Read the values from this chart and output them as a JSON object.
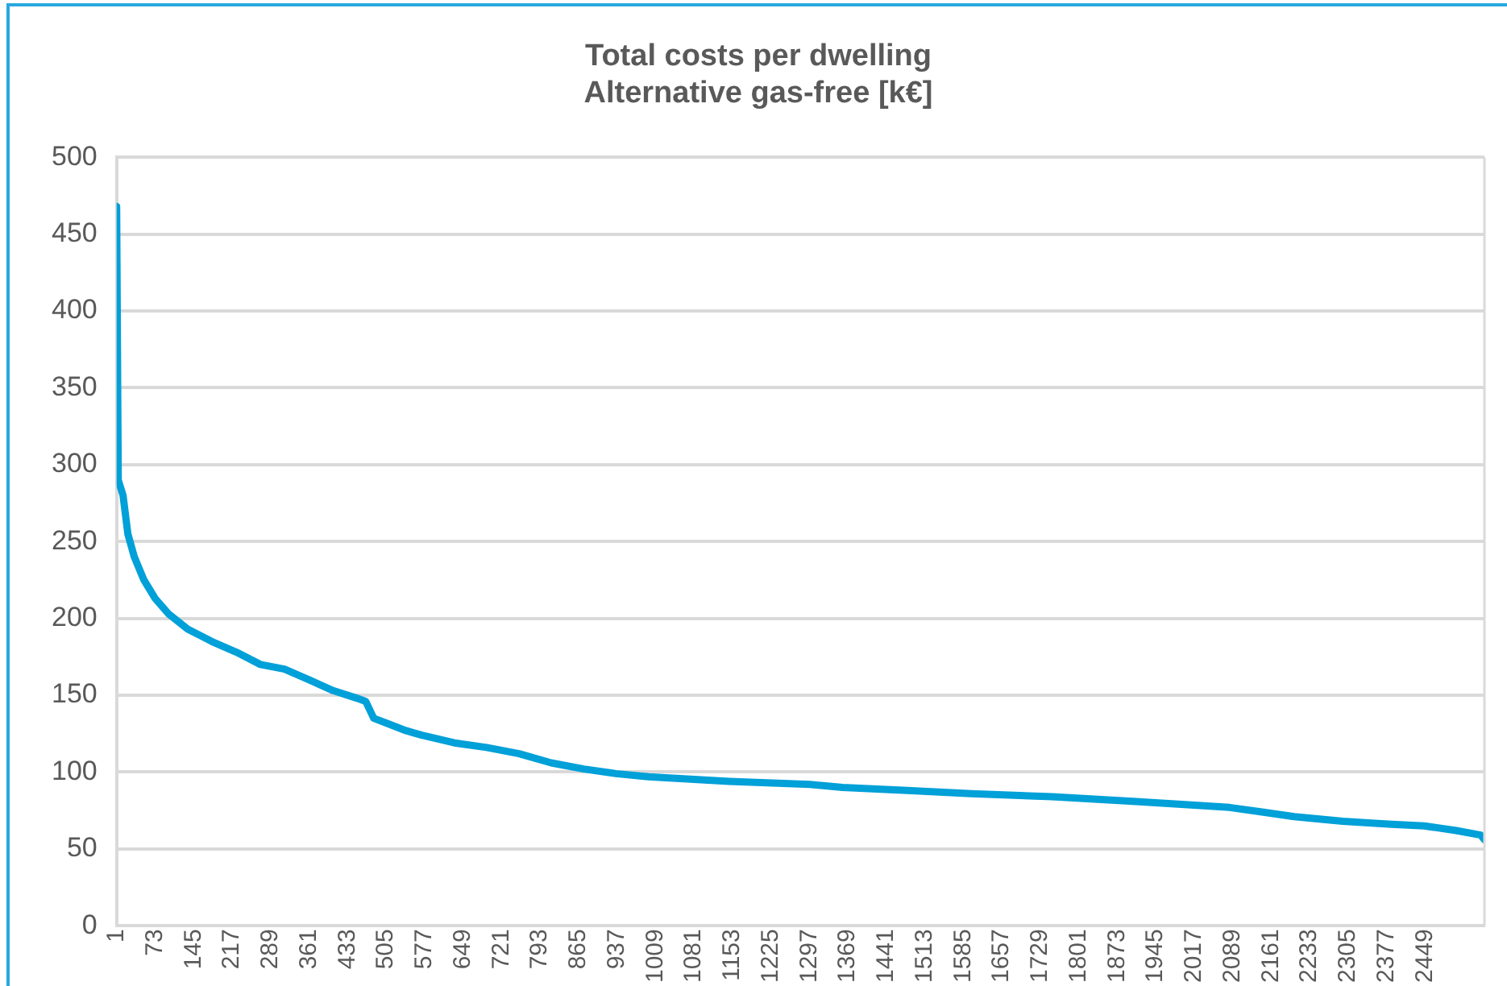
{
  "chart_data": {
    "type": "line",
    "title": "Total costs per dwelling\nAlternative gas-free [k€]",
    "series": [
      {
        "color": "#00a0d8",
        "x": [
          1,
          4,
          13,
          22,
          34,
          52,
          73,
          98,
          134,
          179,
          225,
          270,
          315,
          361,
          406,
          451,
          467,
          482,
          512,
          542,
          572,
          633,
          693,
          754,
          814,
          875,
          935,
          996,
          1147,
          1298,
          1359,
          1480,
          1600,
          1751,
          1902,
          1993,
          2083,
          2144,
          2204,
          2295,
          2386,
          2447,
          2507,
          2553,
          2560
        ],
        "values": [
          468,
          290,
          280,
          255,
          240,
          225,
          213,
          203,
          193,
          185,
          178,
          170,
          167,
          160,
          153,
          148,
          146,
          135,
          131,
          127,
          124,
          119,
          116,
          112,
          106,
          102,
          99,
          97,
          94,
          92,
          90,
          88,
          86,
          84,
          81,
          79,
          77,
          74,
          71,
          68,
          66,
          65,
          62,
          59,
          56
        ]
      }
    ],
    "xlim": [
      1,
      2560
    ],
    "xticks": [
      1,
      73,
      145,
      217,
      289,
      361,
      433,
      505,
      577,
      649,
      721,
      793,
      865,
      937,
      1009,
      1081,
      1153,
      1225,
      1297,
      1369,
      1441,
      1513,
      1585,
      1657,
      1729,
      1801,
      1873,
      1945,
      2017,
      2089,
      2161,
      2233,
      2305,
      2377,
      2449
    ],
    "ylim": [
      0,
      500
    ],
    "yticks": [
      0,
      50,
      100,
      150,
      200,
      250,
      300,
      350,
      400,
      450,
      500
    ],
    "grid": "y",
    "legend": false,
    "marker": "none",
    "line_style": "solid"
  }
}
